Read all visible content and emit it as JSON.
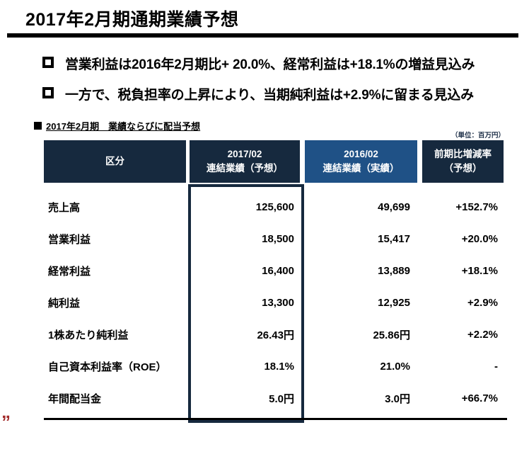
{
  "page": {
    "title": "2017年2月期通期業績予想"
  },
  "bullets": [
    {
      "text": "営業利益は2016年2月期比+ 20.0%、経常利益は+18.1%の増益見込み"
    },
    {
      "text": "一方で、税負担率の上昇により、当期純利益は+2.9%に留まる見込み"
    }
  ],
  "table_section": {
    "heading": "2017年2月期　業績ならびに配当予想",
    "unit_note": "（単位：百万円）",
    "columns": {
      "category": "区分",
      "forecast_line1": "2017/02",
      "forecast_line2": "連結業績（予想）",
      "actual_line1": "2016/02",
      "actual_line2": "連結業績（実績）",
      "change_line1": "前期比増減率",
      "change_line2": "（予想）"
    },
    "rows": [
      {
        "label": "売上高",
        "forecast": "125,600",
        "actual": "49,699",
        "change": "+152.7%"
      },
      {
        "label": "営業利益",
        "forecast": "18,500",
        "actual": "15,417",
        "change": "+20.0%"
      },
      {
        "label": "経常利益",
        "forecast": "16,400",
        "actual": "13,889",
        "change": "+18.1%"
      },
      {
        "label": "純利益",
        "forecast": "13,300",
        "actual": "12,925",
        "change": "+2.9%"
      },
      {
        "label": "1株あたり純利益",
        "forecast": "26.43円",
        "actual": "25.86円",
        "change": "+2.2%"
      },
      {
        "label": "自己資本利益率（ROE）",
        "forecast": "18.1%",
        "actual": "21.0%",
        "change": "-"
      },
      {
        "label": "年間配当金",
        "forecast": "5.0円",
        "actual": "3.0円",
        "change": "+66.7%"
      }
    ]
  },
  "decoration": {
    "corner_mark": "„"
  },
  "colors": {
    "navy": "#16293e",
    "blue": "#1f5186",
    "red": "#a22b2b"
  }
}
